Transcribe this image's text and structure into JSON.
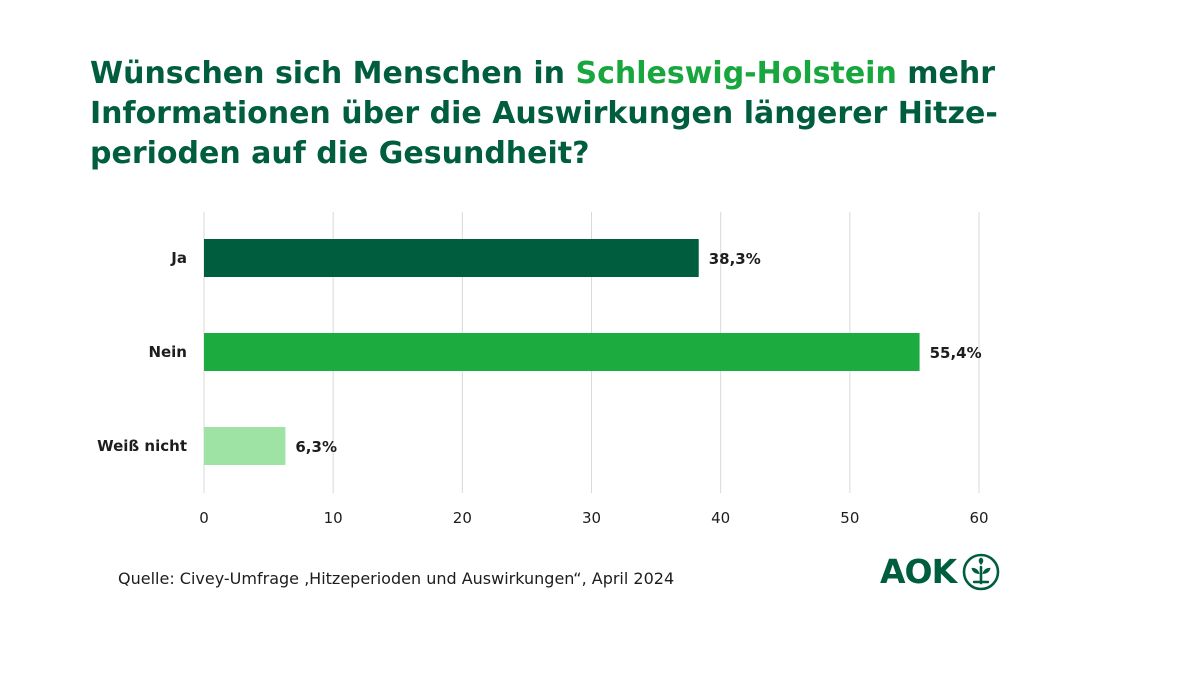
{
  "title": {
    "part1": "Wünschen sich Menschen in ",
    "highlight": "Schleswig-Holstein",
    "part2": " mehr Informationen über die Auswirkungen längerer Hitze- perioden auf die Gesundheit?"
  },
  "colors": {
    "title": "#005e3f",
    "highlight": "#18a63e",
    "grid": "#d9d9d9"
  },
  "chart_data": {
    "type": "bar",
    "orientation": "horizontal",
    "title": "Wünschen sich Menschen in Schleswig-Holstein mehr Informationen über die Auswirkungen längerer Hitzeperioden auf die Gesundheit?",
    "categories": [
      "Ja",
      "Nein",
      "Weiß nicht"
    ],
    "values": [
      38.3,
      55.4,
      6.3
    ],
    "value_labels": [
      "38,3%",
      "55,4%",
      "6,3%"
    ],
    "bar_colors": [
      "#005e3f",
      "#1cab3f",
      "#9ee3a4"
    ],
    "xlim": [
      0,
      60
    ],
    "xticks": [
      0,
      10,
      20,
      30,
      40,
      50,
      60
    ],
    "xtick_labels": [
      "0",
      "10",
      "20",
      "30",
      "40",
      "50",
      "60"
    ],
    "grid": "vertical",
    "xlabel": "",
    "ylabel": ""
  },
  "footer": {
    "source": "Quelle: Civey-Umfrage ‚Hitzeperioden und Auswirkungen“, April 2024"
  },
  "logo": {
    "text": "AOK",
    "icon": "aok-tree-icon"
  }
}
